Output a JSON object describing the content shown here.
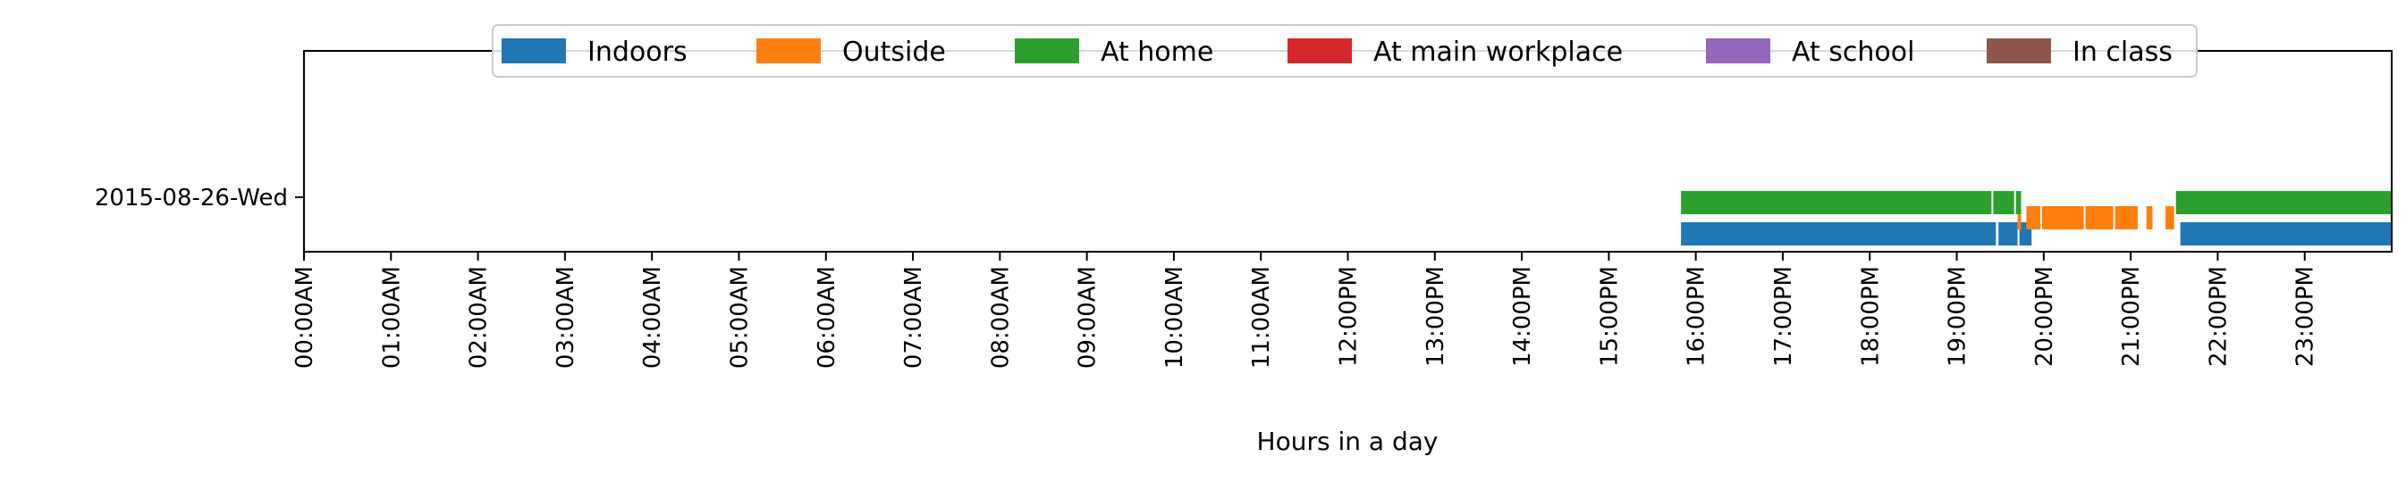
{
  "chart_data": {
    "type": "timeline",
    "xlabel": "Hours in a day",
    "ylabel": "",
    "x_unit": "hours",
    "xlim": [
      0,
      24
    ],
    "x_ticks": [
      {
        "value": 0,
        "label": "00:00AM"
      },
      {
        "value": 1,
        "label": "01:00AM"
      },
      {
        "value": 2,
        "label": "02:00AM"
      },
      {
        "value": 3,
        "label": "03:00AM"
      },
      {
        "value": 4,
        "label": "04:00AM"
      },
      {
        "value": 5,
        "label": "05:00AM"
      },
      {
        "value": 6,
        "label": "06:00AM"
      },
      {
        "value": 7,
        "label": "07:00AM"
      },
      {
        "value": 8,
        "label": "08:00AM"
      },
      {
        "value": 9,
        "label": "09:00AM"
      },
      {
        "value": 10,
        "label": "10:00AM"
      },
      {
        "value": 11,
        "label": "11:00AM"
      },
      {
        "value": 12,
        "label": "12:00PM"
      },
      {
        "value": 13,
        "label": "13:00PM"
      },
      {
        "value": 14,
        "label": "14:00PM"
      },
      {
        "value": 15,
        "label": "15:00PM"
      },
      {
        "value": 16,
        "label": "16:00PM"
      },
      {
        "value": 17,
        "label": "17:00PM"
      },
      {
        "value": 18,
        "label": "18:00PM"
      },
      {
        "value": 19,
        "label": "19:00PM"
      },
      {
        "value": 20,
        "label": "20:00PM"
      },
      {
        "value": 21,
        "label": "21:00PM"
      },
      {
        "value": 22,
        "label": "22:00PM"
      },
      {
        "value": 23,
        "label": "23:00PM"
      }
    ],
    "categories": [
      "2015-08-26-Wed"
    ],
    "grid": false,
    "legend_position": "top-center",
    "series": [
      {
        "name": "Indoors",
        "color": "#1f77b4",
        "lane": 0,
        "intervals": [
          [
            15.83,
            19.45
          ],
          [
            19.48,
            19.7
          ],
          [
            19.72,
            19.86
          ],
          [
            21.57,
            23.99
          ]
        ]
      },
      {
        "name": "Outside",
        "color": "#ff7f0e",
        "lane": 1,
        "intervals": [
          [
            19.7,
            19.74
          ],
          [
            19.8,
            19.96
          ],
          [
            19.98,
            20.46
          ],
          [
            20.48,
            20.8
          ],
          [
            20.82,
            21.08
          ],
          [
            21.18,
            21.25
          ],
          [
            21.4,
            21.5
          ]
        ]
      },
      {
        "name": "At home",
        "color": "#2ca02c",
        "lane": 2,
        "intervals": [
          [
            15.83,
            19.4
          ],
          [
            19.42,
            19.66
          ],
          [
            19.68,
            19.74
          ],
          [
            21.52,
            23.99
          ]
        ]
      },
      {
        "name": "At main workplace",
        "color": "#d62728",
        "lane": 3,
        "intervals": []
      },
      {
        "name": "At school",
        "color": "#9467bd",
        "lane": 4,
        "intervals": []
      },
      {
        "name": "In class",
        "color": "#8c564b",
        "lane": 5,
        "intervals": []
      }
    ]
  }
}
